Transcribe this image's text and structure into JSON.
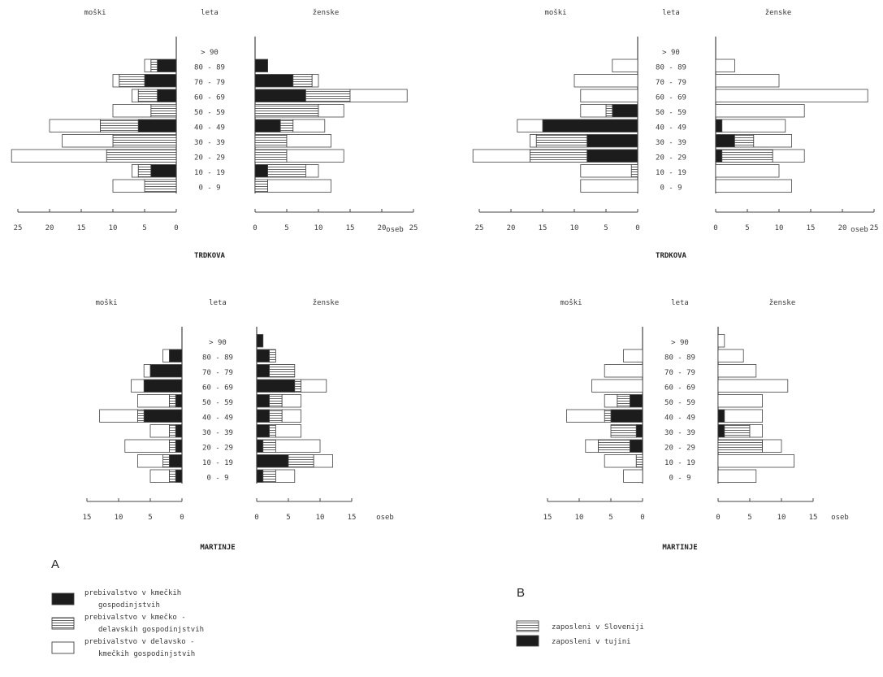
{
  "chart_data": [
    {
      "id": "A_trdkova",
      "type": "population-pyramid",
      "village": "TRDKOVA",
      "panel": "A",
      "header": {
        "left": "moški",
        "center": "leta",
        "right": "ženske"
      },
      "unit_label": "oseb",
      "age_groups": [
        "> 90",
        "80 - 89",
        "70 - 79",
        "60 - 69",
        "50 - 59",
        "40 - 49",
        "30 - 39",
        "20 - 29",
        "10 - 19",
        "0 - 9"
      ],
      "xlim": [
        0,
        25
      ],
      "ticks": [
        0,
        5,
        10,
        15,
        20,
        25
      ],
      "series_order": [
        "kmecka",
        "kmecko_delavska",
        "delavsko_kmecka"
      ],
      "male": {
        "kmecka": [
          0,
          3,
          5,
          3,
          0,
          6,
          0,
          0,
          4,
          0
        ],
        "kmecko_delavska": [
          0,
          1,
          4,
          3,
          4,
          6,
          10,
          11,
          2,
          5
        ],
        "delavsko_kmecka": [
          0,
          1,
          1,
          1,
          6,
          8,
          8,
          15,
          1,
          5
        ]
      },
      "female": {
        "kmecka": [
          0,
          2,
          6,
          8,
          0,
          4,
          0,
          0,
          2,
          0
        ],
        "kmecko_delavska": [
          0,
          0,
          3,
          7,
          10,
          2,
          5,
          5,
          6,
          2
        ],
        "delavsko_kmecka": [
          0,
          0,
          1,
          9,
          4,
          5,
          7,
          9,
          2,
          10
        ]
      }
    },
    {
      "id": "B_trdkova",
      "type": "population-pyramid",
      "village": "TRDKOVA",
      "panel": "B",
      "header": {
        "left": "moški",
        "center": "leta",
        "right": "ženske"
      },
      "unit_label": "oseb",
      "age_groups": [
        "> 90",
        "80 - 89",
        "70 - 79",
        "60 - 69",
        "50 - 59",
        "40 - 49",
        "30 - 39",
        "20 - 29",
        "10 - 19",
        "0 - 9"
      ],
      "xlim": [
        0,
        25
      ],
      "ticks": [
        0,
        5,
        10,
        15,
        20,
        25
      ],
      "series_order": [
        "tujina",
        "slovenija",
        "ostali"
      ],
      "male": {
        "tujina": [
          0,
          0,
          0,
          0,
          4,
          15,
          8,
          8,
          0,
          0
        ],
        "slovenija": [
          0,
          0,
          0,
          0,
          1,
          0,
          8,
          9,
          1,
          0
        ],
        "ostali": [
          0,
          4,
          10,
          9,
          4,
          4,
          1,
          9,
          8,
          9
        ]
      },
      "female": {
        "tujina": [
          0,
          0,
          0,
          0,
          0,
          1,
          3,
          1,
          0,
          0
        ],
        "slovenija": [
          0,
          0,
          0,
          0,
          0,
          0,
          3,
          8,
          0,
          0
        ],
        "ostali": [
          0,
          3,
          10,
          24,
          14,
          10,
          6,
          5,
          10,
          12
        ]
      }
    },
    {
      "id": "A_martinje",
      "type": "population-pyramid",
      "village": "MARTINJE",
      "panel": "A",
      "header": {
        "left": "moški",
        "center": "leta",
        "right": "ženske"
      },
      "unit_label": "oseb",
      "age_groups": [
        "> 90",
        "80 - 89",
        "70 - 79",
        "60 - 69",
        "50 - 59",
        "40 - 49",
        "30 - 39",
        "20 - 29",
        "10 - 19",
        "0 - 9"
      ],
      "xlim": [
        0,
        15
      ],
      "ticks": [
        0,
        5,
        10,
        15
      ],
      "series_order": [
        "kmecka",
        "kmecko_delavska",
        "delavsko_kmecka"
      ],
      "male": {
        "kmecka": [
          0,
          2,
          5,
          6,
          1,
          6,
          1,
          1,
          2,
          1
        ],
        "kmecko_delavska": [
          0,
          0,
          0,
          0,
          1,
          1,
          1,
          1,
          1,
          1
        ],
        "delavsko_kmecka": [
          0,
          1,
          1,
          2,
          5,
          6,
          3,
          7,
          4,
          3
        ]
      },
      "female": {
        "kmecka": [
          1,
          2,
          2,
          6,
          2,
          2,
          2,
          1,
          5,
          1
        ],
        "kmecko_delavska": [
          0,
          1,
          4,
          1,
          2,
          2,
          1,
          2,
          4,
          2
        ],
        "delavsko_kmecka": [
          0,
          0,
          0,
          4,
          3,
          3,
          4,
          7,
          3,
          3
        ]
      }
    },
    {
      "id": "B_martinje",
      "type": "population-pyramid",
      "village": "MARTINJE",
      "panel": "B",
      "header": {
        "left": "moški",
        "center": "leta",
        "right": "ženske"
      },
      "unit_label": "oseb",
      "age_groups": [
        "> 90",
        "80 - 89",
        "70 - 79",
        "60 - 69",
        "50 - 59",
        "40 - 49",
        "30 - 39",
        "20 - 29",
        "10 - 19",
        "0 - 9"
      ],
      "xlim": [
        0,
        15
      ],
      "ticks": [
        0,
        5,
        10,
        15
      ],
      "series_order": [
        "tujina",
        "slovenija",
        "ostali"
      ],
      "male": {
        "tujina": [
          0,
          0,
          0,
          0,
          2,
          5,
          1,
          2,
          0,
          0
        ],
        "slovenija": [
          0,
          0,
          0,
          0,
          2,
          1,
          4,
          5,
          1,
          0
        ],
        "ostali": [
          0,
          3,
          6,
          8,
          2,
          6,
          0,
          2,
          5,
          3
        ]
      },
      "female": {
        "tujina": [
          0,
          0,
          0,
          0,
          0,
          1,
          1,
          0,
          0,
          0
        ],
        "slovenija": [
          0,
          0,
          0,
          0,
          0,
          0,
          4,
          7,
          0,
          0
        ],
        "ostali": [
          1,
          4,
          6,
          11,
          7,
          6,
          2,
          3,
          12,
          6
        ]
      }
    }
  ],
  "patterns": {
    "kmecka": "solid",
    "kmecko_delavska": "hatch",
    "delavsko_kmecka": "empty",
    "tujina": "solid",
    "slovenija": "hatch",
    "ostali": "empty"
  },
  "colors": {
    "ink": "#1c1c1c",
    "stroke": "#444444",
    "hatch": "#555555",
    "background": "#ffffff"
  },
  "legend_A": {
    "letter": "A",
    "items": [
      {
        "key": "kmecka",
        "lines": [
          "prebivalstvo v kmečkih",
          "gospodinjstvih"
        ]
      },
      {
        "key": "kmecko_delavska",
        "lines": [
          "prebivalstvo v kmečko -",
          "delavskih gospodinjstvih"
        ]
      },
      {
        "key": "delavsko_kmecka",
        "lines": [
          "prebivalstvo v delavsko -",
          "kmečkih gospodinjstvih"
        ]
      }
    ]
  },
  "legend_B": {
    "letter": "B",
    "items": [
      {
        "key": "slovenija",
        "lines": [
          "zaposleni v Sloveniji"
        ]
      },
      {
        "key": "tujina",
        "lines": [
          "zaposleni v tujini"
        ]
      }
    ]
  }
}
